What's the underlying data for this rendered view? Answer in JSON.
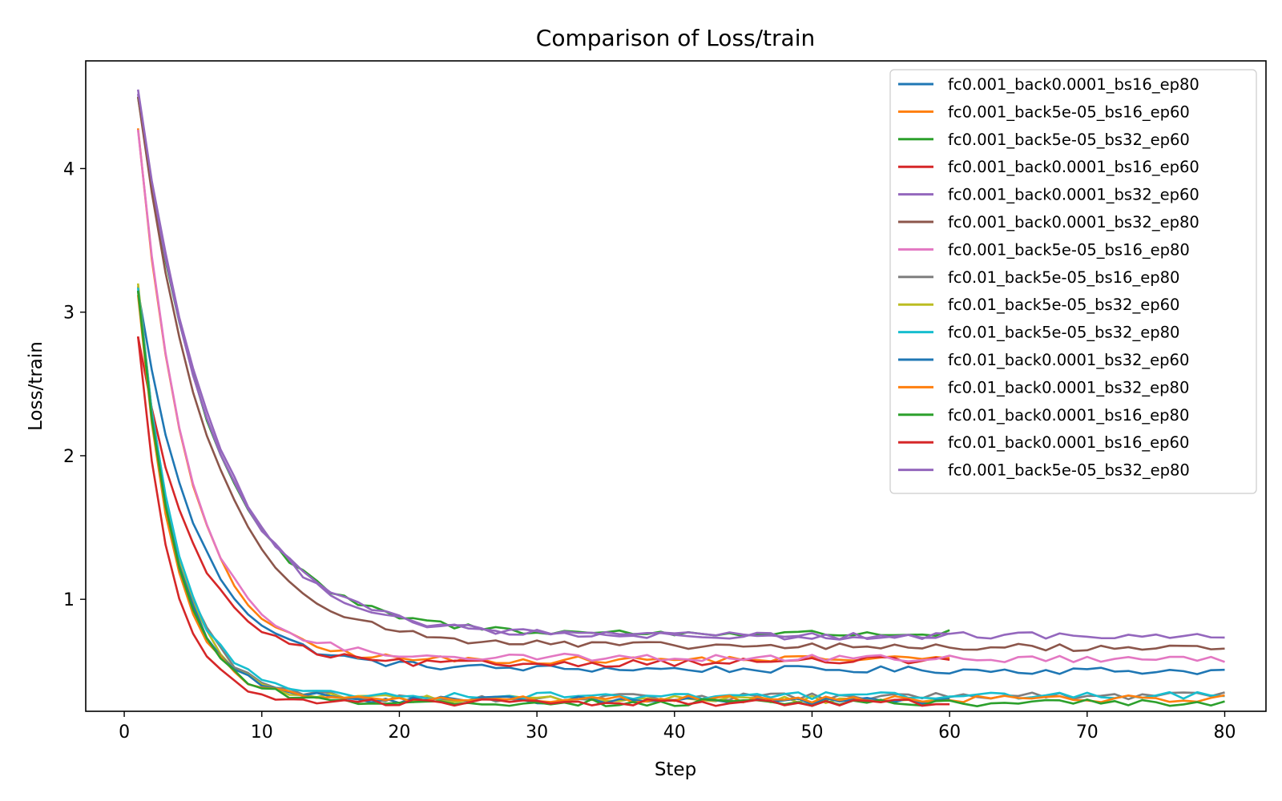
{
  "chart_data": {
    "type": "line",
    "title": "Comparison of Loss/train",
    "xlabel": "Step",
    "ylabel": "Loss/train",
    "xlim": [
      -2.8,
      83
    ],
    "ylim": [
      0.22,
      4.75
    ],
    "xticks": [
      0,
      10,
      20,
      30,
      40,
      50,
      60,
      70,
      80
    ],
    "yticks": [
      1,
      2,
      3,
      4
    ],
    "legend_position": "upper right",
    "grid": false,
    "series": [
      {
        "name": "fc0.001_back0.0001_bs16_ep80",
        "color": "#1f77b4",
        "start": 3.15,
        "k": 4.2,
        "plateau": 0.52,
        "end": 0.5,
        "steps": 80
      },
      {
        "name": "fc0.001_back5e-05_bs16_ep60",
        "color": "#ff7f0e",
        "start": 4.28,
        "k": 3.6,
        "plateau": 0.57,
        "end": 0.59,
        "steps": 60
      },
      {
        "name": "fc0.001_back5e-05_bs32_ep60",
        "color": "#2ca02c",
        "start": 4.5,
        "k": 5.5,
        "plateau": 0.76,
        "end": 0.76,
        "steps": 60
      },
      {
        "name": "fc0.001_back0.0001_bs16_ep60",
        "color": "#d62728",
        "start": 2.83,
        "k": 4.0,
        "plateau": 0.54,
        "end": 0.58,
        "steps": 60
      },
      {
        "name": "fc0.001_back0.0001_bs32_ep60",
        "color": "#9467bd",
        "start": 4.52,
        "k": 5.5,
        "plateau": 0.75,
        "end": 0.74,
        "steps": 60
      },
      {
        "name": "fc0.001_back0.0001_bs32_ep80",
        "color": "#8c564b",
        "start": 4.5,
        "k": 5.2,
        "plateau": 0.68,
        "end": 0.66,
        "steps": 80
      },
      {
        "name": "fc0.001_back5e-05_bs16_ep80",
        "color": "#e377c2",
        "start": 4.27,
        "k": 3.6,
        "plateau": 0.6,
        "end": 0.58,
        "steps": 80
      },
      {
        "name": "fc0.01_back5e-05_bs16_ep80",
        "color": "#7f7f7f",
        "start": 3.18,
        "k": 2.8,
        "plateau": 0.31,
        "end": 0.33,
        "steps": 80
      },
      {
        "name": "fc0.01_back5e-05_bs32_ep60",
        "color": "#bcbd22",
        "start": 3.2,
        "k": 2.7,
        "plateau": 0.31,
        "end": 0.3,
        "steps": 60
      },
      {
        "name": "fc0.01_back5e-05_bs32_ep80",
        "color": "#17becf",
        "start": 3.17,
        "k": 2.8,
        "plateau": 0.33,
        "end": 0.33,
        "steps": 80
      },
      {
        "name": "fc0.01_back0.0001_bs32_ep60",
        "color": "#1f77b4",
        "start": 3.15,
        "k": 2.7,
        "plateau": 0.3,
        "end": 0.29,
        "steps": 60
      },
      {
        "name": "fc0.01_back0.0001_bs32_ep80",
        "color": "#ff7f0e",
        "start": 3.12,
        "k": 2.6,
        "plateau": 0.3,
        "end": 0.31,
        "steps": 80
      },
      {
        "name": "fc0.01_back0.0001_bs16_ep80",
        "color": "#2ca02c",
        "start": 3.15,
        "k": 2.7,
        "plateau": 0.28,
        "end": 0.28,
        "steps": 80
      },
      {
        "name": "fc0.01_back0.0001_bs16_ep60",
        "color": "#d62728",
        "start": 2.83,
        "k": 2.4,
        "plateau": 0.28,
        "end": 0.28,
        "steps": 60
      },
      {
        "name": "fc0.001_back5e-05_bs32_ep80",
        "color": "#9467bd",
        "start": 4.55,
        "k": 5.6,
        "plateau": 0.74,
        "end": 0.75,
        "steps": 80
      }
    ]
  }
}
